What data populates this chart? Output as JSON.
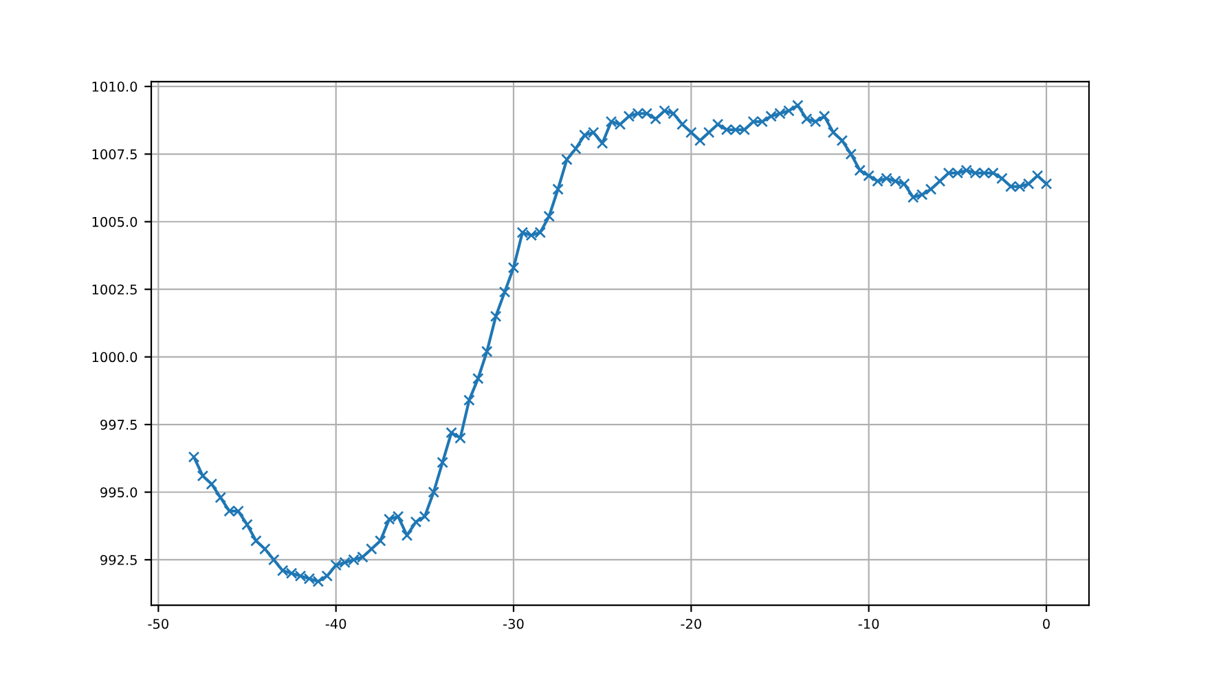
{
  "chart_data": {
    "type": "line",
    "x": [
      -48,
      -47.5,
      -47,
      -46.5,
      -46,
      -45.5,
      -45,
      -44.5,
      -44,
      -43.5,
      -43,
      -42.5,
      -42,
      -41.5,
      -41,
      -40.5,
      -40,
      -39.5,
      -39,
      -38.5,
      -38,
      -37.5,
      -37,
      -36.5,
      -36,
      -35.5,
      -35,
      -34.5,
      -34,
      -33.5,
      -33,
      -32.5,
      -32,
      -31.5,
      -31,
      -30.5,
      -30,
      -29.5,
      -29,
      -28.5,
      -28,
      -27.5,
      -27,
      -26.5,
      -26,
      -25.5,
      -25,
      -24.5,
      -24,
      -23.5,
      -23,
      -22.5,
      -22,
      -21.5,
      -21,
      -20.5,
      -20,
      -19.5,
      -19,
      -18.5,
      -18,
      -17.5,
      -17,
      -16.5,
      -16,
      -15.5,
      -15,
      -14.5,
      -14,
      -13.5,
      -13,
      -12.5,
      -12,
      -11.5,
      -11,
      -10.5,
      -10,
      -9.5,
      -9,
      -8.5,
      -8,
      -7.5,
      -7,
      -6.5,
      -6,
      -5.5,
      -5,
      -4.5,
      -4,
      -3.5,
      -3,
      -2.5,
      -2,
      -1.5,
      -1,
      -0.5,
      0
    ],
    "series": [
      {
        "color": "#1f77b4",
        "values": [
          996.3,
          995.6,
          995.3,
          994.8,
          994.3,
          994.3,
          993.8,
          993.2,
          992.9,
          992.5,
          992.1,
          992.0,
          991.9,
          991.8,
          991.7,
          991.9,
          992.3,
          992.4,
          992.5,
          992.6,
          992.9,
          993.2,
          994.0,
          994.1,
          993.4,
          993.9,
          994.1,
          995.0,
          996.1,
          997.2,
          997.0,
          998.4,
          999.2,
          1000.2,
          1001.5,
          1002.4,
          1003.3,
          1004.6,
          1004.5,
          1004.6,
          1005.2,
          1006.2,
          1007.3,
          1007.7,
          1008.2,
          1008.3,
          1007.9,
          1008.7,
          1008.6,
          1008.9,
          1009.0,
          1009.0,
          1008.8,
          1009.1,
          1009.0,
          1008.6,
          1008.3,
          1008.0,
          1008.3,
          1008.6,
          1008.4,
          1008.4,
          1008.4,
          1008.7,
          1008.7,
          1008.9,
          1009.0,
          1009.1,
          1009.3,
          1008.8,
          1008.7,
          1008.9,
          1008.3,
          1008.0,
          1007.5,
          1006.9,
          1006.7,
          1006.5,
          1006.6,
          1006.5,
          1006.4,
          1005.9,
          1006.0,
          1006.2,
          1006.5,
          1006.8,
          1006.8,
          1006.9,
          1006.8,
          1006.8,
          1006.8,
          1006.6,
          1006.3,
          1006.3,
          1006.4,
          1006.7,
          1006.4
        ]
      }
    ],
    "xlim": [
      -50.4,
      2.4
    ],
    "ylim": [
      990.82,
      1010.18
    ],
    "xticks": [
      -50,
      -40,
      -30,
      -20,
      -10,
      0
    ],
    "yticks": [
      {
        "value": 992.5,
        "label": "992.5"
      },
      {
        "value": 995,
        "label": "995.0"
      },
      {
        "value": 997.5,
        "label": "997.5"
      },
      {
        "value": 1000,
        "label": "1000.0"
      },
      {
        "value": 1002.5,
        "label": "1002.5"
      },
      {
        "value": 1005,
        "label": "1005.0"
      },
      {
        "value": 1007.5,
        "label": "1007.5"
      },
      {
        "value": 1010,
        "label": "1010.0"
      }
    ],
    "grid": true,
    "marker": "cross",
    "line_style": "solid"
  }
}
